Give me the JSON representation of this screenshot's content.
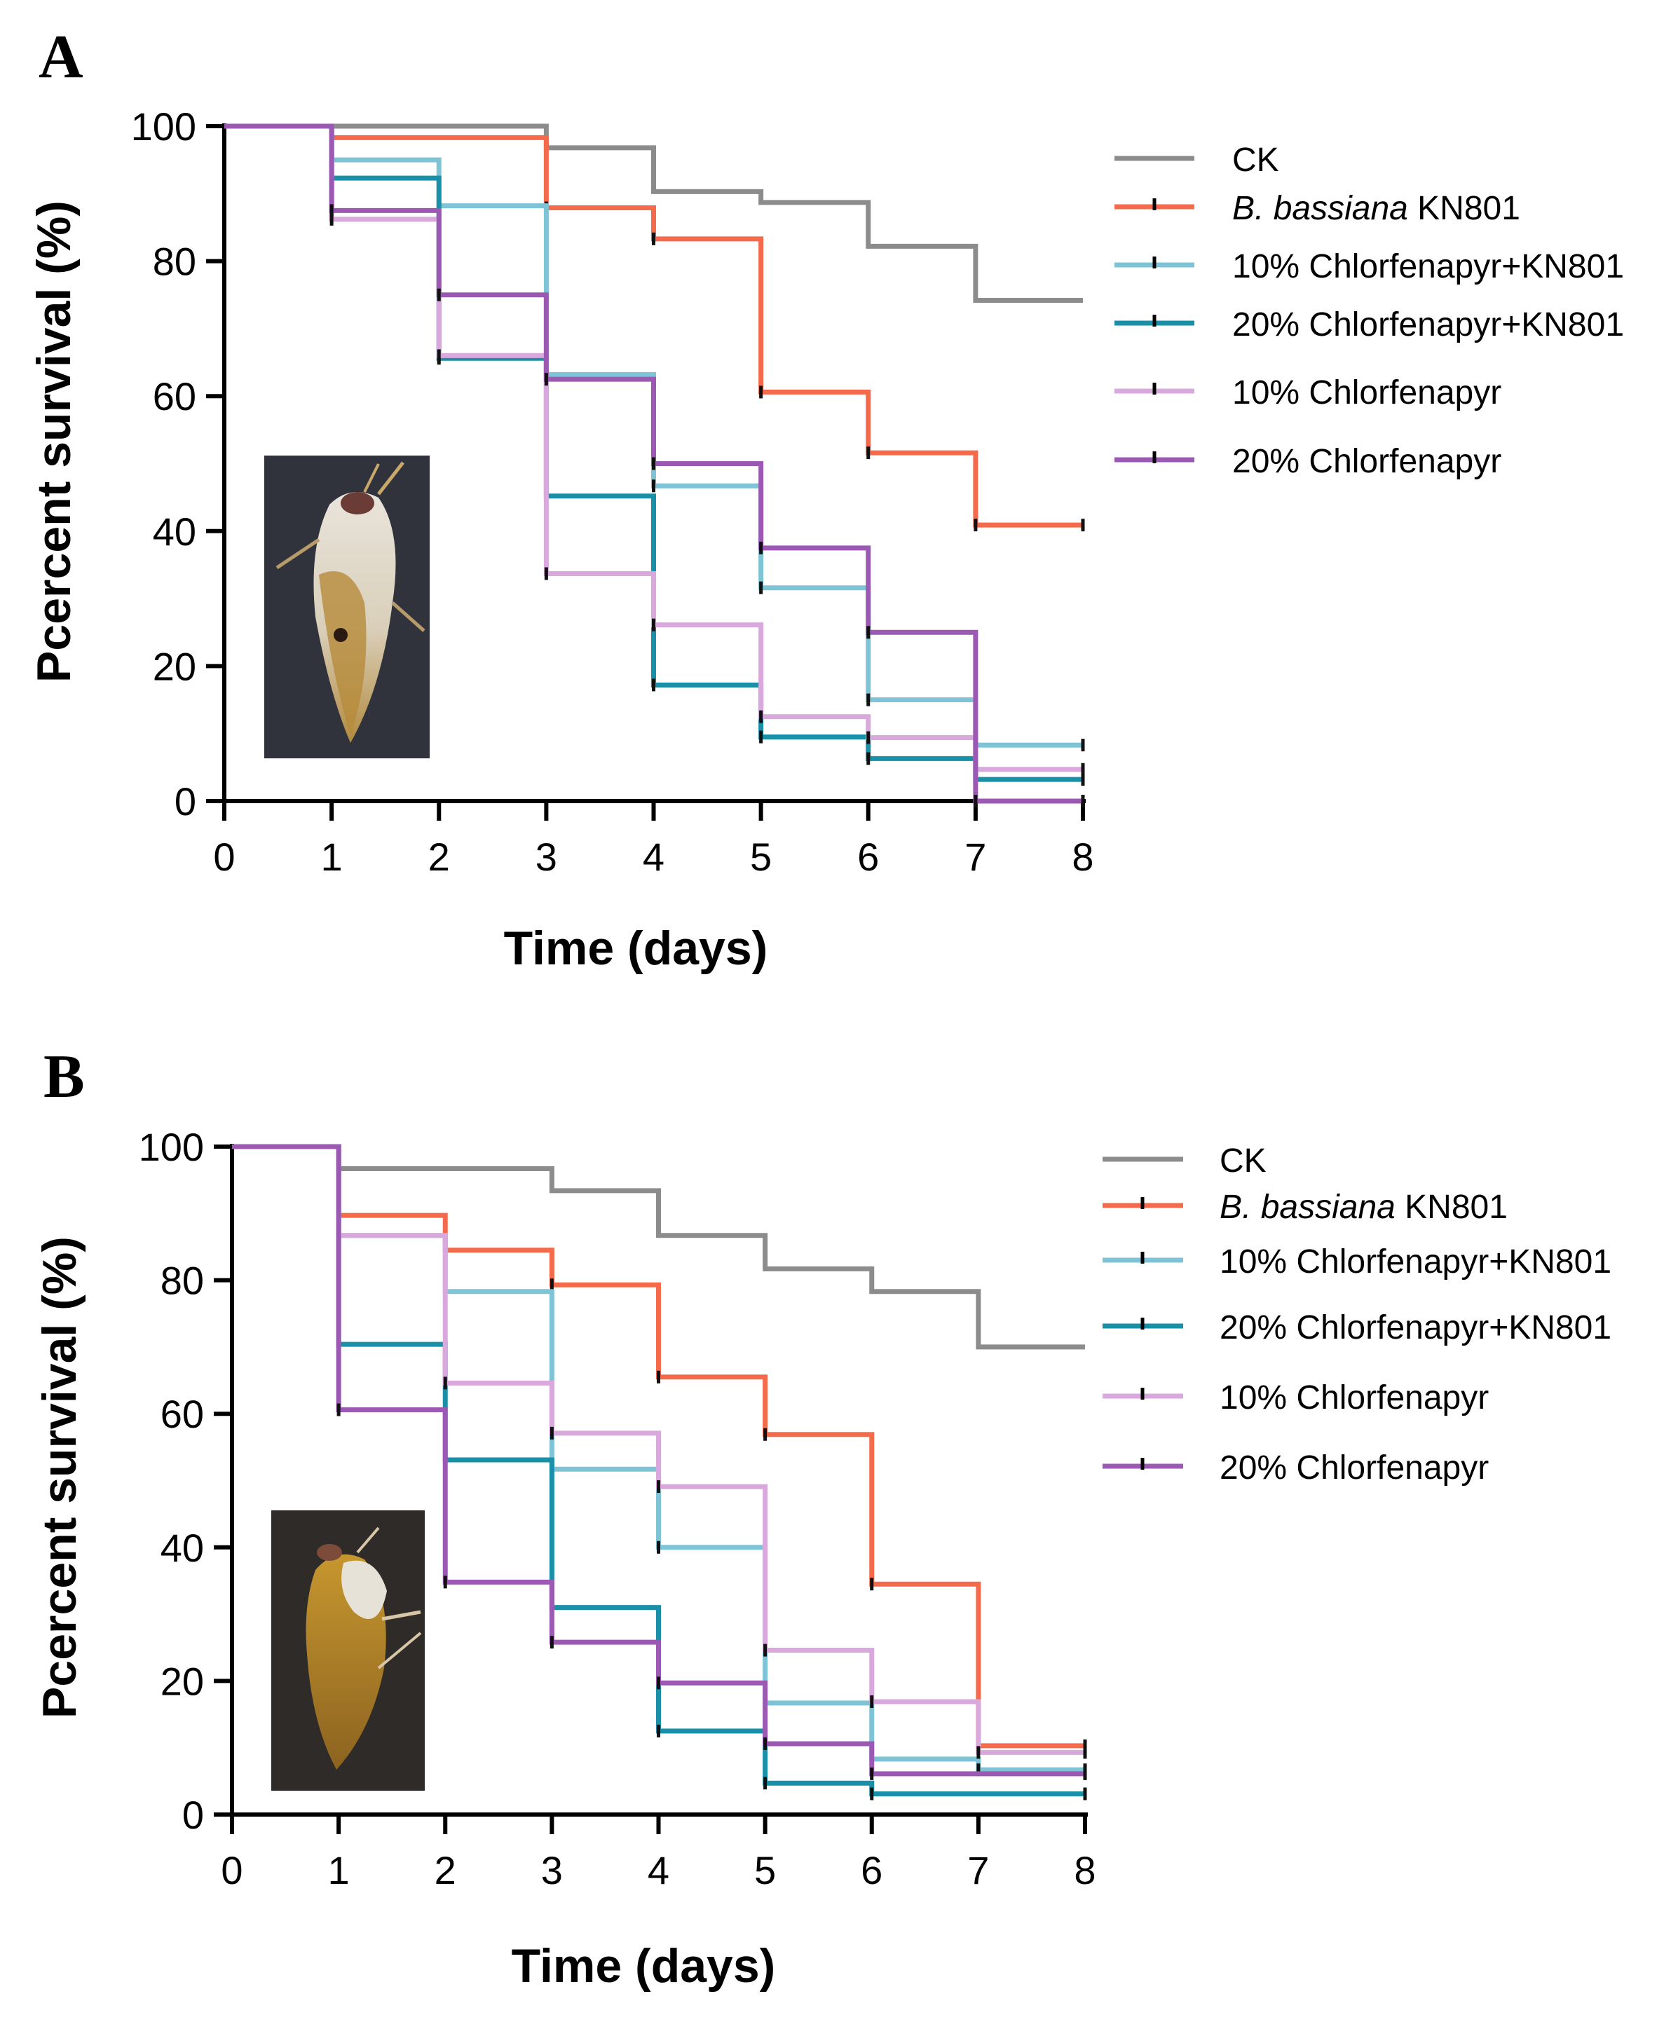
{
  "figure": {
    "series_meta": [
      {
        "name": "CK",
        "color": "#8c8c8c"
      },
      {
        "name": "B. bassiana KN801",
        "name_italic": "B. bassiana",
        "name_rest": " KN801",
        "color": "#f46a4b"
      },
      {
        "name": "10% Chlorfenapyr+KN801",
        "color": "#7ec3d6"
      },
      {
        "name": "20% Chlorfenapyr+KN801",
        "color": "#1a8fa8"
      },
      {
        "name": "10% Chlorfenapyr",
        "color": "#d9a8dc"
      },
      {
        "name": "20% Chlorfenapyr",
        "color": "#9c59b3"
      }
    ],
    "photos": [
      {
        "label": "Moth infected by B. bassiana (panel A)"
      },
      {
        "label": "Moth infected by B. bassiana (panel B)"
      }
    ]
  },
  "chart_data": [
    {
      "type": "line",
      "panel": "A",
      "step": true,
      "xlabel": "Time (days)",
      "ylabel": "Pcercent survival (%)",
      "xlim": [
        0,
        8
      ],
      "ylim": [
        0,
        100
      ],
      "xticks": [
        "0",
        "1",
        "2",
        "3",
        "4",
        "5",
        "6",
        "7",
        "8"
      ],
      "yticks": [
        "0",
        "20",
        "40",
        "60",
        "80",
        "100"
      ],
      "legend_position": "right",
      "x": [
        0,
        1,
        2,
        3,
        4,
        5,
        6,
        7,
        8
      ],
      "series": [
        {
          "name": "CK",
          "values": [
            100,
            100,
            100,
            96.8,
            90.3,
            88.7,
            82.2,
            74.2,
            74.2
          ]
        },
        {
          "name": "B. bassiana KN801",
          "values": [
            100,
            98.3,
            98.3,
            87.9,
            83.3,
            60.6,
            51.6,
            40.9,
            40.9
          ]
        },
        {
          "name": "10% Chlorfenapyr+KN801",
          "values": [
            100,
            95.0,
            88.2,
            63.2,
            46.7,
            31.6,
            15.0,
            8.3,
            8.3
          ]
        },
        {
          "name": "20% Chlorfenapyr+KN801",
          "values": [
            100,
            92.3,
            65.6,
            45.2,
            17.2,
            9.5,
            6.3,
            3.2,
            3.2
          ]
        },
        {
          "name": "10% Chlorfenapyr",
          "values": [
            100,
            86.2,
            66.0,
            33.7,
            26.1,
            12.5,
            9.4,
            4.7,
            4.7
          ]
        },
        {
          "name": "20% Chlorfenapyr",
          "values": [
            100,
            87.5,
            75.0,
            62.5,
            50.0,
            37.5,
            25.0,
            0,
            0
          ]
        }
      ]
    },
    {
      "type": "line",
      "panel": "B",
      "step": true,
      "xlabel": "Time (days)",
      "ylabel": "Pcercent survival (%)",
      "xlim": [
        0,
        8
      ],
      "ylim": [
        0,
        100
      ],
      "xticks": [
        "0",
        "1",
        "2",
        "3",
        "4",
        "5",
        "6",
        "7",
        "8"
      ],
      "yticks": [
        "0",
        "20",
        "40",
        "60",
        "80",
        "100"
      ],
      "legend_position": "right",
      "x": [
        0,
        1,
        2,
        3,
        4,
        5,
        6,
        7,
        8
      ],
      "series": [
        {
          "name": "CK",
          "values": [
            100,
            96.7,
            96.7,
            93.4,
            86.7,
            81.7,
            78.3,
            70.0,
            70.0
          ]
        },
        {
          "name": "B. bassiana KN801",
          "values": [
            100,
            89.7,
            84.5,
            79.3,
            65.5,
            56.9,
            34.5,
            10.3,
            10.3
          ]
        },
        {
          "name": "10% Chlorfenapyr+KN801",
          "values": [
            100,
            86.7,
            78.3,
            51.7,
            40.0,
            16.7,
            8.3,
            6.7,
            6.7
          ]
        },
        {
          "name": "20% Chlorfenapyr+KN801",
          "values": [
            100,
            70.4,
            53.1,
            31.0,
            12.5,
            4.7,
            3.1,
            3.1,
            3.1
          ]
        },
        {
          "name": "10% Chlorfenapyr",
          "values": [
            100,
            86.7,
            64.6,
            57.1,
            49.1,
            24.6,
            16.9,
            9.3,
            9.3
          ]
        },
        {
          "name": "20% Chlorfenapyr",
          "values": [
            100,
            60.6,
            34.8,
            25.8,
            19.7,
            10.6,
            6.1,
            6.1,
            6.1
          ]
        }
      ]
    }
  ]
}
